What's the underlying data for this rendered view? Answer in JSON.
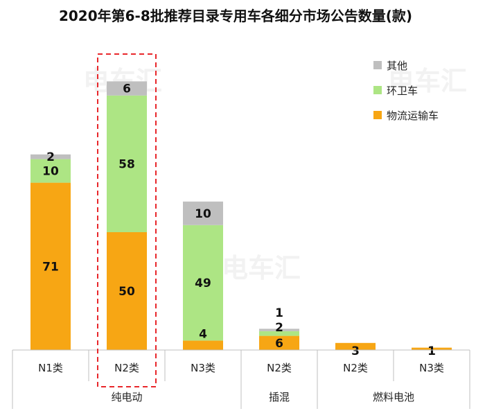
{
  "chart_data": {
    "type": "bar",
    "stacked": true,
    "title": "2020年第6-8批推荐目录专用车各细分市场公告数量(款)",
    "categories": [
      "N1类",
      "N2类",
      "N3类",
      "N2类",
      "N2类",
      "N3类"
    ],
    "groups": [
      {
        "label": "纯电动",
        "categories": [
          0,
          1,
          2
        ]
      },
      {
        "label": "插混",
        "categories": [
          3
        ]
      },
      {
        "label": "燃料电池",
        "categories": [
          4,
          5
        ]
      }
    ],
    "series": [
      {
        "name": "物流运输车",
        "color": "#f7a614",
        "values": [
          71,
          50,
          4,
          6,
          3,
          1
        ]
      },
      {
        "name": "环卫车",
        "color": "#ade584",
        "values": [
          10,
          58,
          49,
          2,
          0,
          0
        ]
      },
      {
        "name": "其他",
        "color": "#bfbfbf",
        "values": [
          2,
          6,
          10,
          1,
          0,
          0
        ]
      }
    ],
    "legend_position": "top-right",
    "highlighted_category": 1,
    "grid": false
  },
  "watermark": "电车汇"
}
